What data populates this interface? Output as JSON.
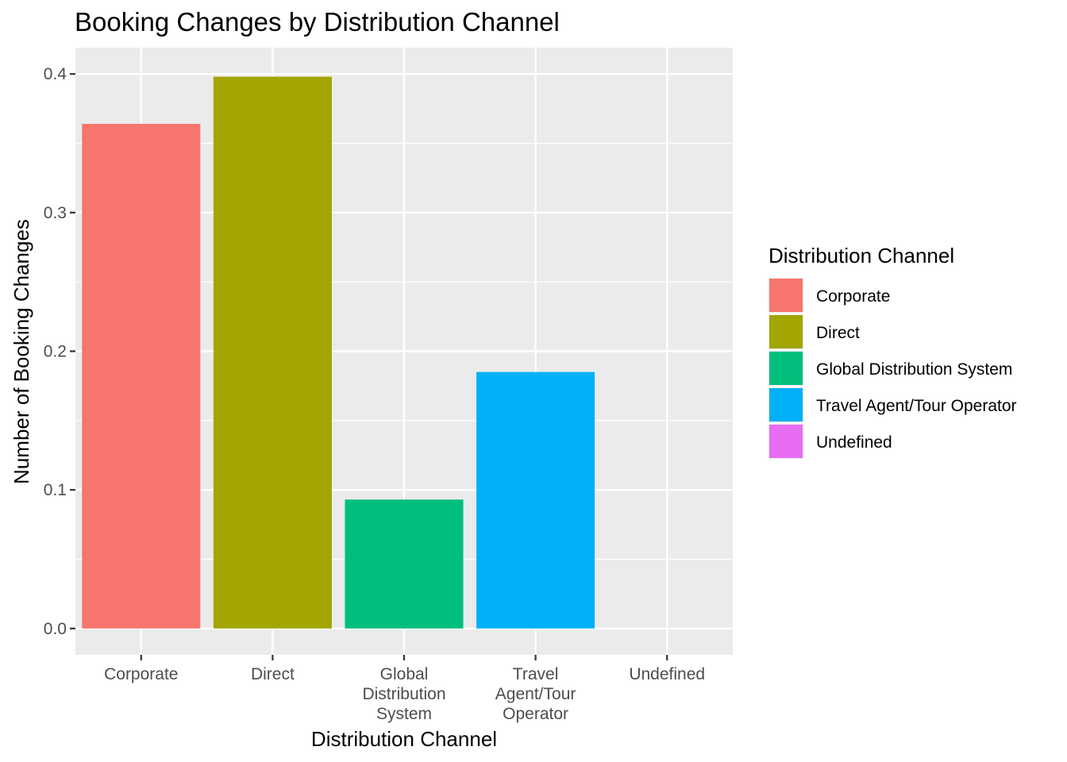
{
  "chart_data": {
    "type": "bar",
    "title": "Booking Changes by Distribution Channel",
    "xlabel": "Distribution Channel",
    "ylabel": "Number of Booking Changes",
    "categories": [
      "Corporate",
      "Direct",
      "Global Distribution System",
      "Travel Agent/Tour Operator",
      "Undefined"
    ],
    "category_tick_lines": [
      [
        "Corporate"
      ],
      [
        "Direct"
      ],
      [
        "Global",
        "Distribution",
        "System"
      ],
      [
        "Travel",
        "Agent/Tour",
        "Operator"
      ],
      [
        "Undefined"
      ]
    ],
    "values": [
      0.364,
      0.398,
      0.093,
      0.185,
      0.0
    ],
    "colors": [
      "#F8766D",
      "#A3A500",
      "#00BF7D",
      "#00B0F6",
      "#E76BF3"
    ],
    "ylim": [
      -0.019,
      0.419
    ],
    "yticks": [
      0.0,
      0.1,
      0.2,
      0.3,
      0.4
    ],
    "ytick_labels": [
      "0.0",
      "0.1",
      "0.2",
      "0.3",
      "0.4"
    ],
    "grid": true,
    "legend": {
      "title": "Distribution Channel",
      "position": "right",
      "entries": [
        "Corporate",
        "Direct",
        "Global Distribution System",
        "Travel Agent/Tour Operator",
        "Undefined"
      ]
    }
  }
}
